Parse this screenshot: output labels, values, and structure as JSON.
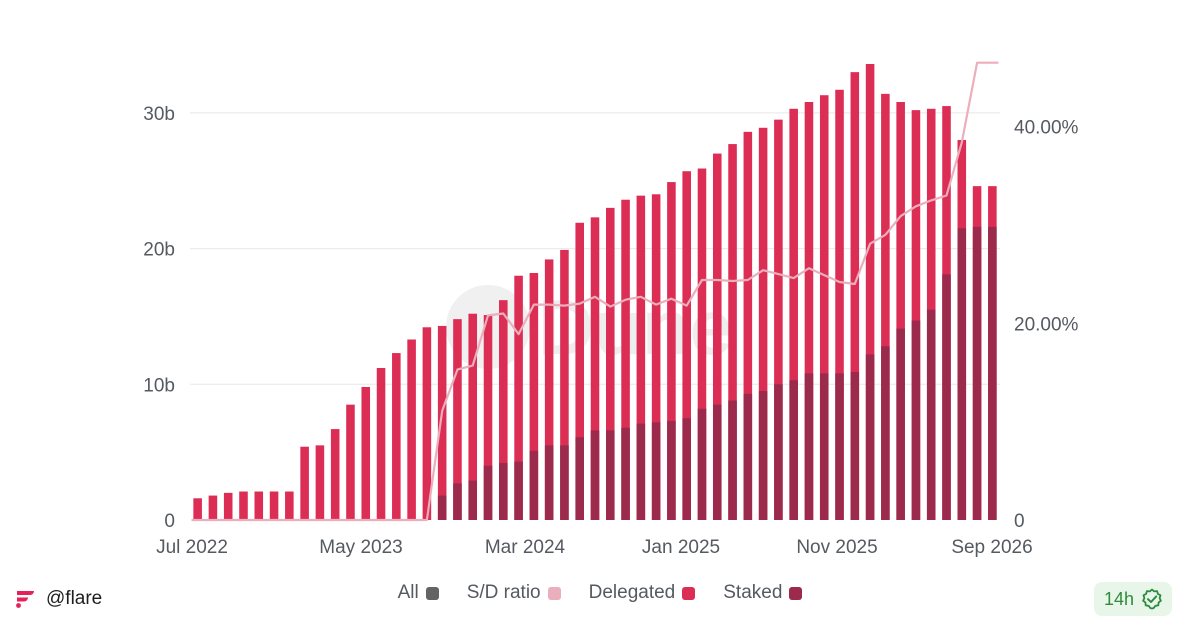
{
  "chart_data": {
    "type": "bar",
    "x_ticks": [
      "Jul 2022",
      "May 2023",
      "Mar 2024",
      "Jan 2025",
      "Nov 2025",
      "Sep 2026"
    ],
    "y_left_ticks": [
      "0",
      "10b",
      "20b",
      "30b"
    ],
    "y_right_ticks": [
      "0",
      "20.00%",
      "40.00%"
    ],
    "ylim_left": [
      0,
      35
    ],
    "ylim_right": [
      0,
      48.3
    ],
    "grid": true,
    "legend_position": "bottom",
    "series": [
      {
        "name": "Delegated",
        "color": "#dc2d55",
        "values": [
          1.6,
          1.8,
          2.0,
          2.1,
          2.1,
          2.1,
          2.1,
          5.4,
          5.5,
          6.7,
          8.5,
          9.8,
          11.2,
          12.3,
          13.3,
          14.2,
          14.3,
          14.8,
          15.2,
          15.1,
          16.2,
          18.0,
          18.2,
          19.2,
          19.9,
          21.9,
          22.3,
          23.0,
          23.6,
          23.9,
          24.0,
          24.9,
          25.7,
          25.9,
          27.0,
          27.7,
          28.6,
          28.9,
          29.5,
          30.3,
          30.8,
          31.3,
          31.7,
          33.0,
          33.6,
          31.4,
          30.8,
          30.2,
          30.3,
          30.5,
          28.0,
          24.6,
          24.6
        ],
        "visible_from_index": 0
      },
      {
        "name": "Staked",
        "color": "#9c2a4c",
        "values": [
          0,
          0,
          0,
          0,
          0,
          0,
          0,
          0,
          0,
          0,
          0,
          0,
          0,
          0,
          0,
          0,
          1.8,
          2.7,
          2.9,
          4.0,
          4.2,
          4.3,
          5.1,
          5.5,
          5.5,
          6.1,
          6.6,
          6.6,
          6.8,
          7.1,
          7.2,
          7.3,
          7.5,
          8.2,
          8.5,
          8.8,
          9.3,
          9.5,
          10.0,
          10.3,
          10.8,
          10.8,
          10.8,
          10.9,
          12.2,
          12.8,
          14.1,
          14.7,
          15.5,
          18.1,
          21.5,
          21.6,
          21.6
        ],
        "visible_from_index": 16
      },
      {
        "name": "S/D ratio",
        "color": "#ebaebc",
        "axis": "right",
        "values": [
          0,
          0,
          0,
          0,
          0,
          0,
          0,
          0,
          0,
          0,
          0,
          0,
          0,
          0,
          0,
          0,
          11.1,
          15.3,
          15.7,
          20.8,
          21.0,
          18.9,
          21.9,
          21.9,
          21.8,
          22.0,
          22.7,
          21.7,
          22.4,
          22.7,
          21.9,
          22.5,
          21.8,
          24.4,
          24.4,
          24.3,
          24.4,
          25.4,
          25.0,
          24.6,
          25.6,
          24.9,
          24.2,
          24.0,
          28.1,
          29.0,
          30.9,
          31.9,
          32.5,
          33.0,
          38.4,
          46.5,
          46.5
        ]
      }
    ]
  },
  "watermark": "Dune",
  "legend": [
    {
      "label": "All",
      "color": "#646464"
    },
    {
      "label": "S/D ratio",
      "color": "#ebaebc"
    },
    {
      "label": "Delegated",
      "color": "#dc2d55"
    },
    {
      "label": "Staked",
      "color": "#9c2a4c"
    }
  ],
  "footer": {
    "account": "@flare",
    "logo_color": "#e62058",
    "freshness": "14h",
    "check_color": "#2f8a3c"
  }
}
